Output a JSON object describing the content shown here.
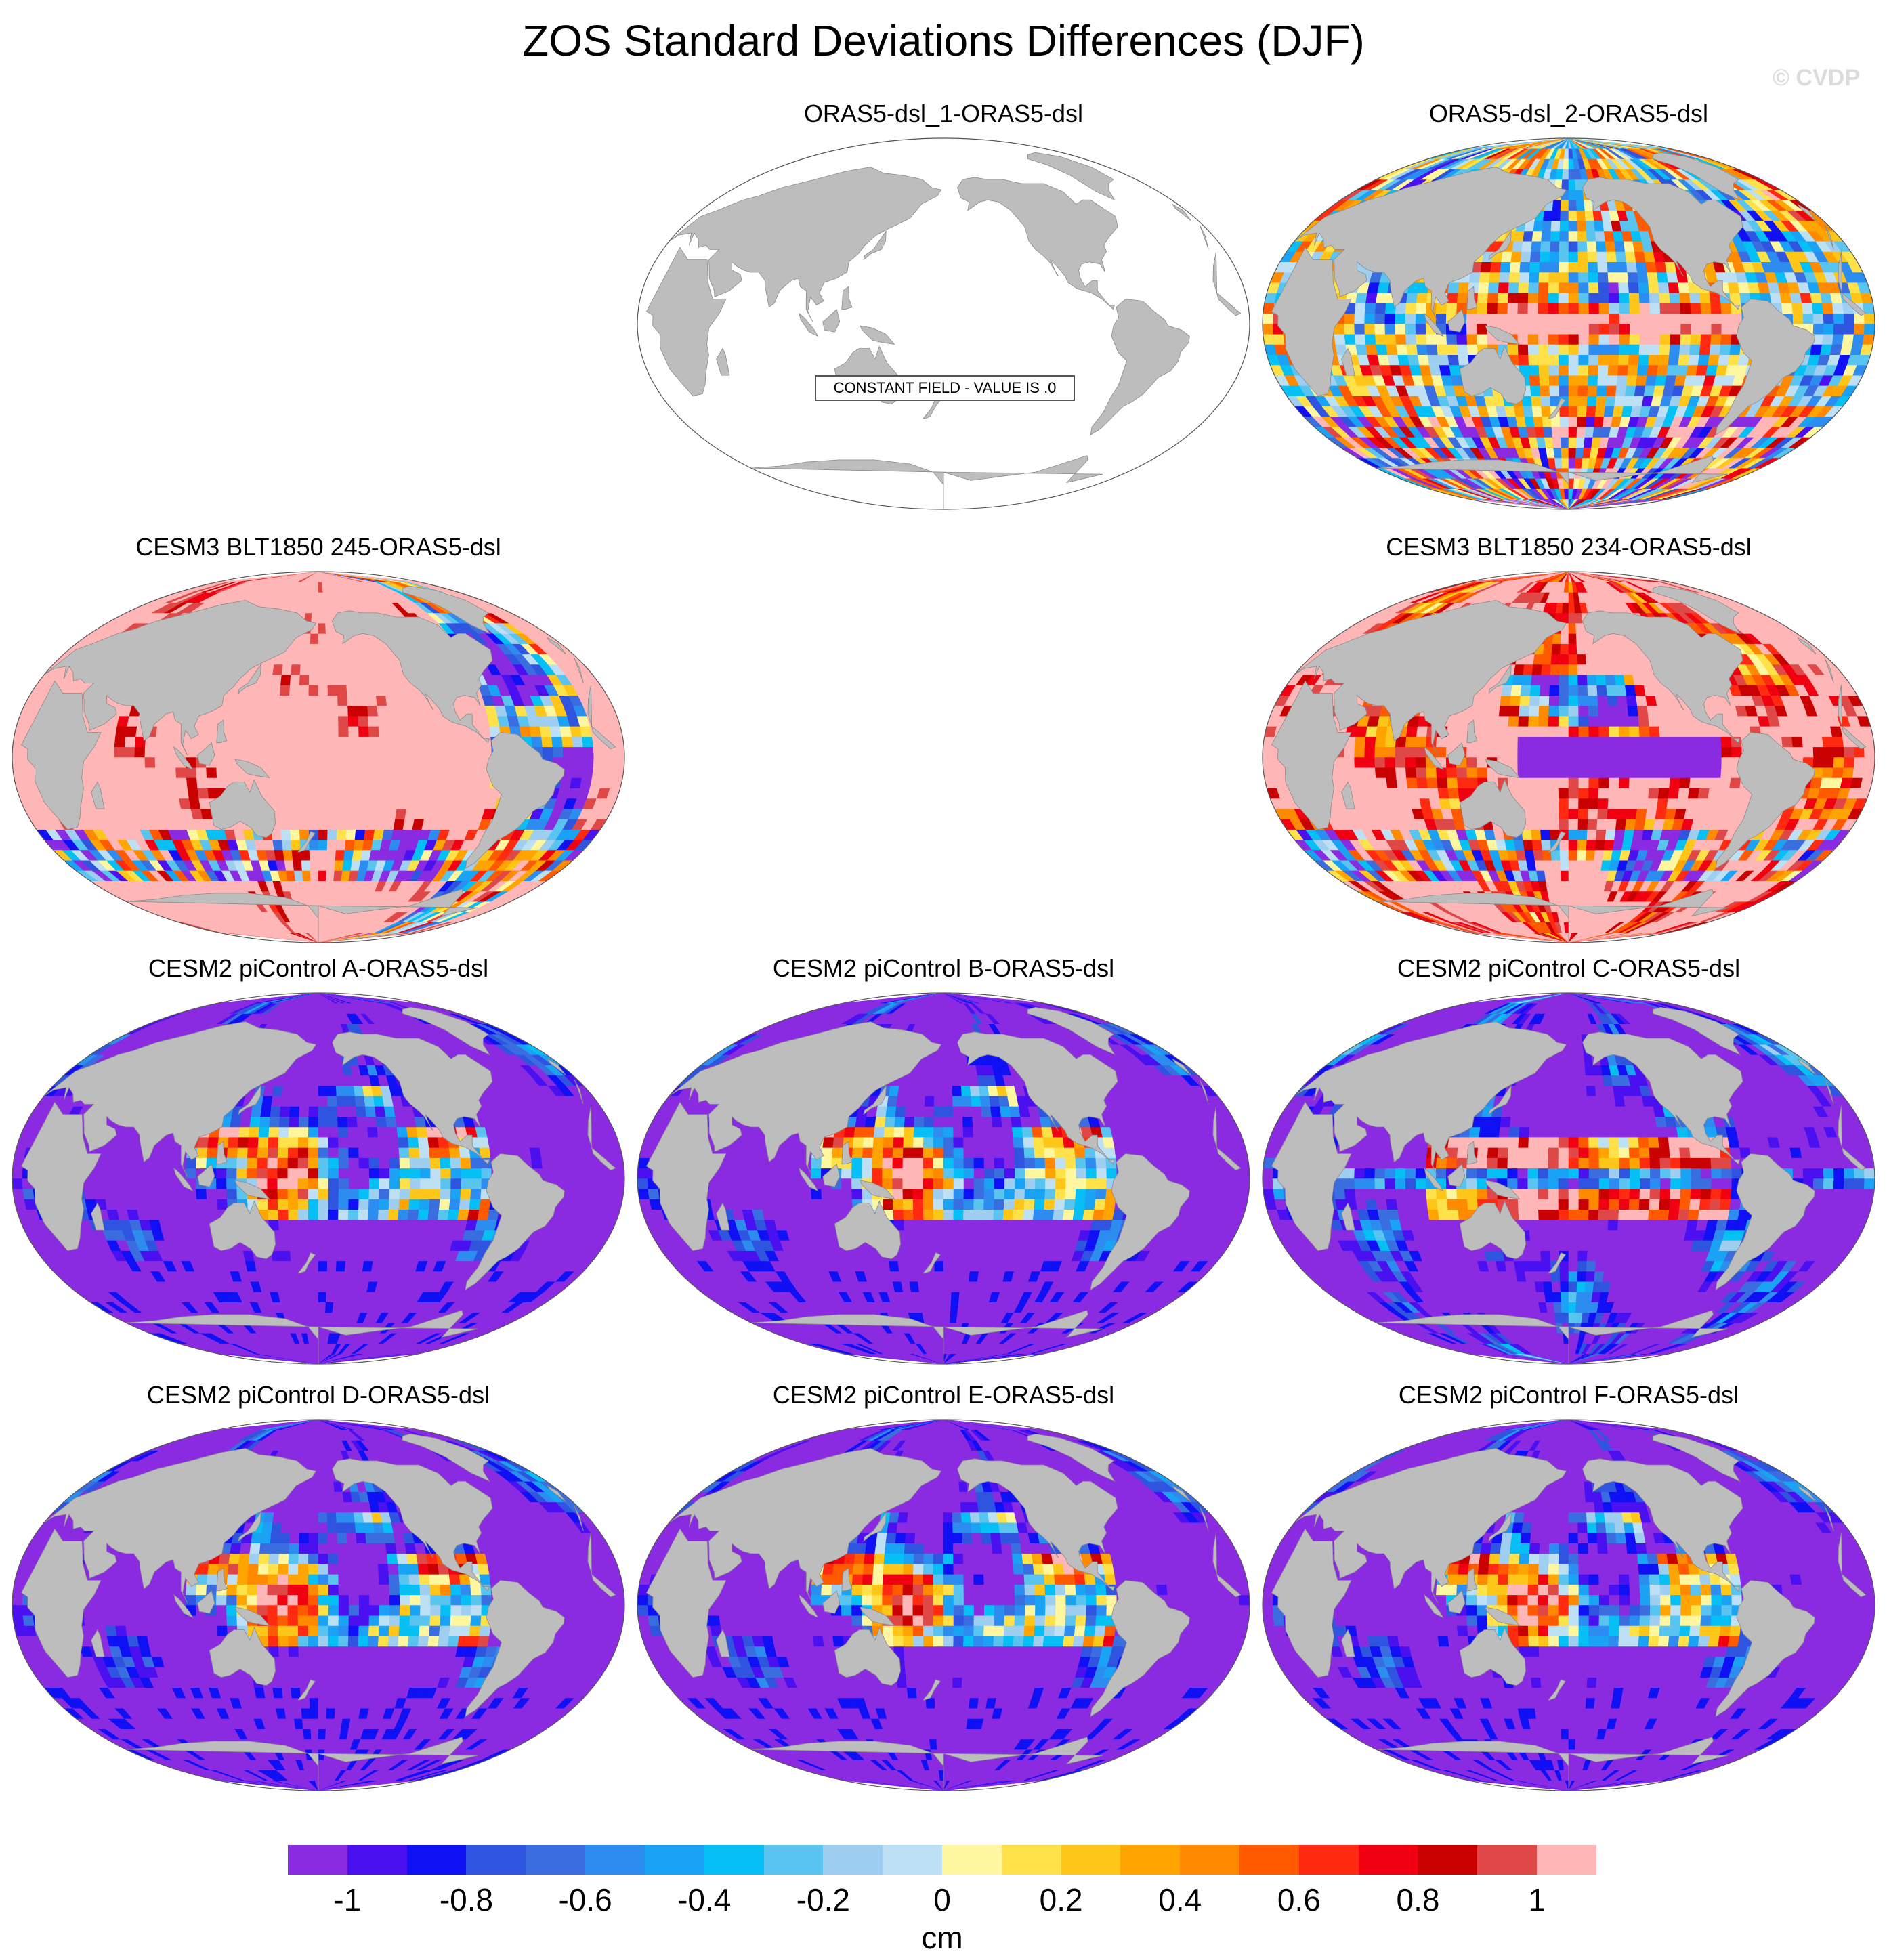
{
  "title": "ZOS Standard Deviations Differences (DJF)",
  "watermark": "© CVDP",
  "panels": [
    {
      "title": "ORAS5-dsl_1-ORAS5-dsl",
      "pattern": "constant",
      "note": "CONSTANT FIELD - VALUE IS .0"
    },
    {
      "title": "ORAS5-dsl_2-ORAS5-dsl",
      "pattern": "mixed"
    },
    {
      "title": "CESM3 BLT1850 245-ORAS5-dsl",
      "pattern": "positive"
    },
    {
      "title": "CESM3 BLT1850 234-ORAS5-dsl",
      "pattern": "positive-mixed"
    },
    {
      "title": "CESM2 piControl A-ORAS5-dsl",
      "pattern": "negative"
    },
    {
      "title": "CESM2 piControl B-ORAS5-dsl",
      "pattern": "negative"
    },
    {
      "title": "CESM2 piControl C-ORAS5-dsl",
      "pattern": "negative-mixed"
    },
    {
      "title": "CESM2 piControl D-ORAS5-dsl",
      "pattern": "negative"
    },
    {
      "title": "CESM2 piControl E-ORAS5-dsl",
      "pattern": "negative"
    },
    {
      "title": "CESM2 piControl F-ORAS5-dsl",
      "pattern": "negative"
    }
  ],
  "colorbar": {
    "units": "cm",
    "tick_labels": [
      "-1",
      "-0.8",
      "-0.6",
      "-0.4",
      "-0.2",
      "0",
      "0.2",
      "0.4",
      "0.6",
      "0.8",
      "1"
    ],
    "colors": [
      "#8a2be2",
      "#4a10f0",
      "#1010f5",
      "#2f54e0",
      "#3a6ee0",
      "#2d8cf0",
      "#1aa3f5",
      "#05bff5",
      "#5ac4f0",
      "#9fcff0",
      "#bde0f5",
      "#fff6a0",
      "#ffe14a",
      "#ffc61a",
      "#ffa400",
      "#ff8a00",
      "#ff5a00",
      "#ff2a10",
      "#f00010",
      "#c80000",
      "#e04848",
      "#ffb6b6"
    ]
  }
}
